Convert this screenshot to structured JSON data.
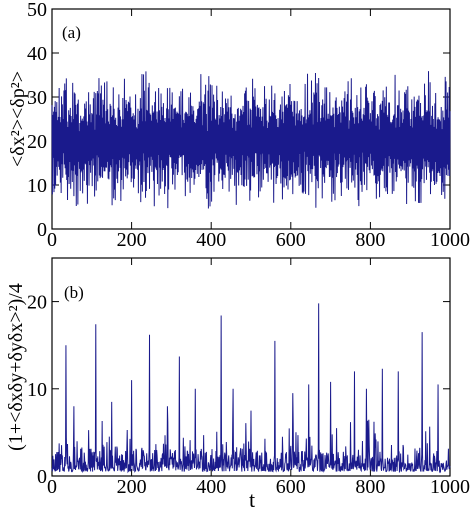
{
  "chart_data": [
    {
      "type": "line",
      "panel_label": "(a)",
      "ylabel": "<δx²><δp²>",
      "xlabel": "",
      "xlim": [
        0,
        1000
      ],
      "ylim": [
        0,
        50
      ],
      "xticks": [
        0,
        200,
        400,
        600,
        800,
        1000
      ],
      "yticks": [
        0,
        10,
        20,
        30,
        40,
        50
      ],
      "grid": false,
      "color": "#1a1a8c",
      "series_summary": {
        "points": 1000,
        "mean": 20,
        "min": 4.5,
        "max": 37,
        "seed": 7
      }
    },
    {
      "type": "line",
      "panel_label": "(b)",
      "ylabel": "(1+<δxδy+δyδx>²)/4",
      "xlabel": "t",
      "xlim": [
        0,
        1000
      ],
      "ylim": [
        0,
        25
      ],
      "xticks": [
        0,
        200,
        400,
        600,
        800,
        1000
      ],
      "yticks": [
        0,
        10,
        20
      ],
      "grid": false,
      "color": "#1a1a8c",
      "series_summary": {
        "points": 1000,
        "baseline": 0.5,
        "max": 19.8,
        "seed": 13
      },
      "peaks": [
        {
          "x": 35,
          "y": 15
        },
        {
          "x": 55,
          "y": 8
        },
        {
          "x": 110,
          "y": 17.4
        },
        {
          "x": 150,
          "y": 8.5
        },
        {
          "x": 200,
          "y": 11
        },
        {
          "x": 245,
          "y": 16.2
        },
        {
          "x": 290,
          "y": 8
        },
        {
          "x": 320,
          "y": 13.7
        },
        {
          "x": 360,
          "y": 10
        },
        {
          "x": 425,
          "y": 18.4
        },
        {
          "x": 455,
          "y": 10
        },
        {
          "x": 500,
          "y": 7.5
        },
        {
          "x": 560,
          "y": 15.5
        },
        {
          "x": 605,
          "y": 9.5
        },
        {
          "x": 645,
          "y": 10.5
        },
        {
          "x": 670,
          "y": 19.8
        },
        {
          "x": 700,
          "y": 10.8
        },
        {
          "x": 760,
          "y": 12
        },
        {
          "x": 790,
          "y": 10
        },
        {
          "x": 830,
          "y": 12.3
        },
        {
          "x": 870,
          "y": 12
        },
        {
          "x": 930,
          "y": 16.5
        },
        {
          "x": 970,
          "y": 10.5
        }
      ]
    }
  ]
}
